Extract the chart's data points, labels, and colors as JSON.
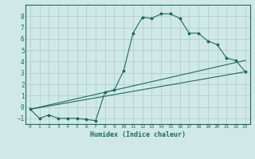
{
  "xlabel": "Humidex (Indice chaleur)",
  "ylabel": "",
  "background_color": "#d0e9e7",
  "grid_color": "#b0cfcd",
  "line_color": "#1a6b60",
  "xlim": [
    -0.5,
    23.5
  ],
  "ylim": [
    -1.5,
    9.0
  ],
  "yticks": [
    -1,
    0,
    1,
    2,
    3,
    4,
    5,
    6,
    7,
    8
  ],
  "xticks": [
    0,
    1,
    2,
    3,
    4,
    5,
    6,
    7,
    8,
    9,
    10,
    11,
    12,
    13,
    14,
    15,
    16,
    17,
    18,
    19,
    20,
    21,
    22,
    23
  ],
  "series": [
    {
      "x": [
        0,
        1,
        2,
        3,
        4,
        5,
        6,
        7,
        8,
        9,
        10,
        11,
        12,
        13,
        14,
        15,
        16,
        17,
        18,
        19,
        20,
        21,
        22,
        23
      ],
      "y": [
        -0.2,
        -1.0,
        -0.7,
        -1.0,
        -1.0,
        -1.0,
        -1.1,
        -1.2,
        1.3,
        1.5,
        3.2,
        6.5,
        7.9,
        7.8,
        8.2,
        8.2,
        7.8,
        6.5,
        6.5,
        5.8,
        5.5,
        4.3,
        4.1,
        3.1
      ],
      "marker": true
    },
    {
      "x": [
        0,
        23
      ],
      "y": [
        -0.2,
        3.1
      ],
      "marker": false
    },
    {
      "x": [
        0,
        23
      ],
      "y": [
        -0.2,
        4.1
      ],
      "marker": false
    }
  ]
}
